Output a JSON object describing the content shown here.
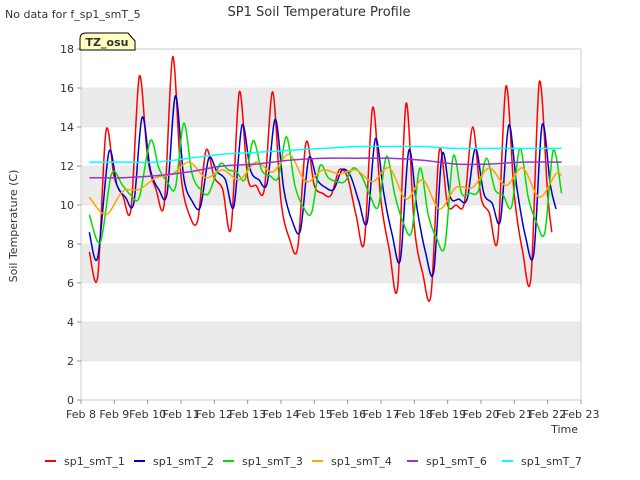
{
  "no_data_note": "No data for f_sp1_smT_5",
  "site_badge": "TZ_osu",
  "chart_data": {
    "type": "line",
    "title": "SP1 Soil Temperature Profile",
    "xlabel": "Time",
    "ylabel": "Soil Temperature (C)",
    "ylim": [
      0,
      18
    ],
    "yticks": [
      0,
      2,
      4,
      6,
      8,
      10,
      12,
      14,
      16,
      18
    ],
    "xlim": [
      "Feb 8",
      "Feb 23"
    ],
    "xticks": [
      "Feb 8",
      "Feb 9",
      "Feb 10",
      "Feb 11",
      "Feb 12",
      "Feb 13",
      "Feb 14",
      "Feb 15",
      "Feb 16",
      "Feb 17",
      "Feb 18",
      "Feb 19",
      "Feb 20",
      "Feb 21",
      "Feb 22",
      "Feb 23"
    ],
    "grid": "horizontal bands",
    "legend_position": "bottom",
    "series": [
      {
        "name": "sp1_smT_1",
        "color": "#ff0000",
        "points": [
          [
            "Feb 8 06:00",
            7.6
          ],
          [
            "Feb 8 12:00",
            6.3
          ],
          [
            "Feb 8 18:00",
            13.8
          ],
          [
            "Feb 9 00:00",
            11.4
          ],
          [
            "Feb 9 06:00",
            10.5
          ],
          [
            "Feb 9 12:00",
            9.8
          ],
          [
            "Feb 9 18:00",
            16.6
          ],
          [
            "Feb 10 00:00",
            12.4
          ],
          [
            "Feb 10 06:00",
            10.8
          ],
          [
            "Feb 10 12:00",
            10.1
          ],
          [
            "Feb 10 18:00",
            17.6
          ],
          [
            "Feb 11 00:00",
            11.5
          ],
          [
            "Feb 11 06:00",
            9.5
          ],
          [
            "Feb 11 12:00",
            9.2
          ],
          [
            "Feb 11 18:00",
            12.8
          ],
          [
            "Feb 12 00:00",
            11.4
          ],
          [
            "Feb 12 06:00",
            10.8
          ],
          [
            "Feb 12 12:00",
            8.8
          ],
          [
            "Feb 12 18:00",
            15.8
          ],
          [
            "Feb 13 00:00",
            11.4
          ],
          [
            "Feb 13 06:00",
            11.0
          ],
          [
            "Feb 13 12:00",
            10.8
          ],
          [
            "Feb 13 18:00",
            15.8
          ],
          [
            "Feb 14 00:00",
            10.2
          ],
          [
            "Feb 14 06:00",
            8.3
          ],
          [
            "Feb 14 12:00",
            7.8
          ],
          [
            "Feb 14 18:00",
            13.2
          ],
          [
            "Feb 15 00:00",
            11.0
          ],
          [
            "Feb 15 06:00",
            10.6
          ],
          [
            "Feb 15 12:00",
            10.5
          ],
          [
            "Feb 15 18:00",
            11.8
          ],
          [
            "Feb 16 00:00",
            11.4
          ],
          [
            "Feb 16 06:00",
            9.5
          ],
          [
            "Feb 16 12:00",
            8.1
          ],
          [
            "Feb 16 18:00",
            15.0
          ],
          [
            "Feb 17 00:00",
            10.2
          ],
          [
            "Feb 17 06:00",
            7.7
          ],
          [
            "Feb 17 12:00",
            5.8
          ],
          [
            "Feb 17 18:00",
            15.2
          ],
          [
            "Feb 18 00:00",
            8.9
          ],
          [
            "Feb 18 06:00",
            6.5
          ],
          [
            "Feb 18 12:00",
            5.4
          ],
          [
            "Feb 18 18:00",
            12.8
          ],
          [
            "Feb 19 00:00",
            10.0
          ],
          [
            "Feb 19 06:00",
            10.0
          ],
          [
            "Feb 19 12:00",
            10.1
          ],
          [
            "Feb 19 18:00",
            14.0
          ],
          [
            "Feb 20 00:00",
            10.4
          ],
          [
            "Feb 20 06:00",
            9.6
          ],
          [
            "Feb 20 12:00",
            8.2
          ],
          [
            "Feb 20 18:00",
            16.1
          ],
          [
            "Feb 21 00:00",
            10.5
          ],
          [
            "Feb 21 06:00",
            7.6
          ],
          [
            "Feb 21 12:00",
            6.3
          ],
          [
            "Feb 21 18:00",
            16.3
          ],
          [
            "Feb 22 00:00",
            10.5
          ],
          [
            "Feb 22 03:00",
            8.6
          ]
        ]
      },
      {
        "name": "sp1_smT_2",
        "color": "#0000cc",
        "points": [
          [
            "Feb 8 06:00",
            8.6
          ],
          [
            "Feb 8 12:00",
            7.3
          ],
          [
            "Feb 8 20:00",
            12.7
          ],
          [
            "Feb 9 02:00",
            11.0
          ],
          [
            "Feb 9 08:00",
            10.4
          ],
          [
            "Feb 9 14:00",
            10.1
          ],
          [
            "Feb 9 20:00",
            14.5
          ],
          [
            "Feb 10 02:00",
            11.8
          ],
          [
            "Feb 10 08:00",
            10.8
          ],
          [
            "Feb 10 14:00",
            10.6
          ],
          [
            "Feb 10 20:00",
            15.6
          ],
          [
            "Feb 11 02:00",
            11.4
          ],
          [
            "Feb 11 08:00",
            10.2
          ],
          [
            "Feb 11 14:00",
            9.9
          ],
          [
            "Feb 11 20:00",
            12.4
          ],
          [
            "Feb 12 02:00",
            11.7
          ],
          [
            "Feb 12 08:00",
            11.3
          ],
          [
            "Feb 12 14:00",
            9.9
          ],
          [
            "Feb 12 20:00",
            14.1
          ],
          [
            "Feb 13 02:00",
            11.8
          ],
          [
            "Feb 13 08:00",
            11.3
          ],
          [
            "Feb 13 14:00",
            11.1
          ],
          [
            "Feb 13 20:00",
            14.4
          ],
          [
            "Feb 14 02:00",
            10.8
          ],
          [
            "Feb 14 08:00",
            9.2
          ],
          [
            "Feb 14 14:00",
            8.7
          ],
          [
            "Feb 14 20:00",
            12.4
          ],
          [
            "Feb 15 02:00",
            11.3
          ],
          [
            "Feb 15 08:00",
            10.9
          ],
          [
            "Feb 15 14:00",
            10.8
          ],
          [
            "Feb 15 20:00",
            11.8
          ],
          [
            "Feb 16 02:00",
            11.5
          ],
          [
            "Feb 16 08:00",
            10.2
          ],
          [
            "Feb 16 14:00",
            9.1
          ],
          [
            "Feb 16 20:00",
            13.4
          ],
          [
            "Feb 17 02:00",
            10.6
          ],
          [
            "Feb 17 08:00",
            8.5
          ],
          [
            "Feb 17 14:00",
            7.2
          ],
          [
            "Feb 17 20:00",
            12.8
          ],
          [
            "Feb 18 02:00",
            9.8
          ],
          [
            "Feb 18 08:00",
            7.6
          ],
          [
            "Feb 18 14:00",
            6.6
          ],
          [
            "Feb 18 20:00",
            12.6
          ],
          [
            "Feb 19 02:00",
            10.4
          ],
          [
            "Feb 19 08:00",
            10.3
          ],
          [
            "Feb 19 14:00",
            10.3
          ],
          [
            "Feb 19 20:00",
            12.9
          ],
          [
            "Feb 20 02:00",
            10.6
          ],
          [
            "Feb 20 08:00",
            10.1
          ],
          [
            "Feb 20 14:00",
            9.2
          ],
          [
            "Feb 20 20:00",
            14.1
          ],
          [
            "Feb 21 02:00",
            10.8
          ],
          [
            "Feb 21 08:00",
            8.4
          ],
          [
            "Feb 21 14:00",
            7.5
          ],
          [
            "Feb 21 20:00",
            14.1
          ],
          [
            "Feb 22 02:00",
            11.0
          ],
          [
            "Feb 22 06:00",
            9.8
          ]
        ]
      },
      {
        "name": "sp1_smT_3",
        "color": "#00dd00",
        "points": [
          [
            "Feb 8 06:00",
            9.5
          ],
          [
            "Feb 8 14:00",
            8.1
          ],
          [
            "Feb 8 22:00",
            11.6
          ],
          [
            "Feb 9 06:00",
            11.0
          ],
          [
            "Feb 9 12:00",
            10.5
          ],
          [
            "Feb 9 18:00",
            10.4
          ],
          [
            "Feb 10 02:00",
            13.3
          ],
          [
            "Feb 10 08:00",
            11.9
          ],
          [
            "Feb 10 14:00",
            11.2
          ],
          [
            "Feb 10 20:00",
            10.9
          ],
          [
            "Feb 11 02:00",
            14.2
          ],
          [
            "Feb 11 08:00",
            11.6
          ],
          [
            "Feb 11 14:00",
            10.8
          ],
          [
            "Feb 11 20:00",
            10.6
          ],
          [
            "Feb 12 04:00",
            12.1
          ],
          [
            "Feb 12 10:00",
            11.8
          ],
          [
            "Feb 12 16:00",
            11.7
          ],
          [
            "Feb 12 22:00",
            11.3
          ],
          [
            "Feb 13 04:00",
            13.3
          ],
          [
            "Feb 13 10:00",
            11.8
          ],
          [
            "Feb 13 16:00",
            11.5
          ],
          [
            "Feb 13 22:00",
            11.4
          ],
          [
            "Feb 14 04:00",
            13.5
          ],
          [
            "Feb 14 10:00",
            11.0
          ],
          [
            "Feb 14 16:00",
            9.9
          ],
          [
            "Feb 14 22:00",
            9.6
          ],
          [
            "Feb 15 04:00",
            12.0
          ],
          [
            "Feb 15 10:00",
            11.4
          ],
          [
            "Feb 15 16:00",
            11.2
          ],
          [
            "Feb 15 22:00",
            11.2
          ],
          [
            "Feb 16 04:00",
            11.9
          ],
          [
            "Feb 16 10:00",
            11.5
          ],
          [
            "Feb 16 16:00",
            10.5
          ],
          [
            "Feb 16 22:00",
            9.9
          ],
          [
            "Feb 17 04:00",
            12.5
          ],
          [
            "Feb 17 10:00",
            10.5
          ],
          [
            "Feb 17 16:00",
            9.1
          ],
          [
            "Feb 17 22:00",
            8.6
          ],
          [
            "Feb 18 04:00",
            11.9
          ],
          [
            "Feb 18 10:00",
            9.5
          ],
          [
            "Feb 18 16:00",
            8.3
          ],
          [
            "Feb 18 22:00",
            7.9
          ],
          [
            "Feb 19 04:00",
            12.5
          ],
          [
            "Feb 19 10:00",
            10.6
          ],
          [
            "Feb 19 16:00",
            10.6
          ],
          [
            "Feb 19 22:00",
            10.7
          ],
          [
            "Feb 20 04:00",
            12.4
          ],
          [
            "Feb 20 10:00",
            10.8
          ],
          [
            "Feb 20 16:00",
            10.5
          ],
          [
            "Feb 20 22:00",
            9.9
          ],
          [
            "Feb 21 04:00",
            12.9
          ],
          [
            "Feb 21 10:00",
            10.4
          ],
          [
            "Feb 21 16:00",
            9.1
          ],
          [
            "Feb 21 22:00",
            8.6
          ],
          [
            "Feb 22 04:00",
            12.8
          ],
          [
            "Feb 22 10:00",
            10.6
          ]
        ]
      },
      {
        "name": "sp1_smT_4",
        "color": "#ffa500",
        "points": [
          [
            "Feb 8 06:00",
            10.4
          ],
          [
            "Feb 8 18:00",
            9.5
          ],
          [
            "Feb 9 06:00",
            10.7
          ],
          [
            "Feb 9 18:00",
            10.8
          ],
          [
            "Feb 10 06:00",
            11.4
          ],
          [
            "Feb 10 18:00",
            11.6
          ],
          [
            "Feb 11 06:00",
            12.2
          ],
          [
            "Feb 11 18:00",
            11.4
          ],
          [
            "Feb 12 06:00",
            11.8
          ],
          [
            "Feb 12 18:00",
            11.3
          ],
          [
            "Feb 13 06:00",
            12.2
          ],
          [
            "Feb 13 18:00",
            11.7
          ],
          [
            "Feb 14 06:00",
            12.6
          ],
          [
            "Feb 14 18:00",
            11.2
          ],
          [
            "Feb 15 06:00",
            11.8
          ],
          [
            "Feb 15 18:00",
            11.6
          ],
          [
            "Feb 16 06:00",
            11.8
          ],
          [
            "Feb 16 18:00",
            11.2
          ],
          [
            "Feb 17 06:00",
            11.9
          ],
          [
            "Feb 17 18:00",
            10.3
          ],
          [
            "Feb 18 06:00",
            11.3
          ],
          [
            "Feb 18 18:00",
            9.8
          ],
          [
            "Feb 19 06:00",
            10.9
          ],
          [
            "Feb 19 18:00",
            10.9
          ],
          [
            "Feb 20 06:00",
            11.9
          ],
          [
            "Feb 20 18:00",
            11.0
          ],
          [
            "Feb 21 06:00",
            11.9
          ],
          [
            "Feb 21 18:00",
            10.4
          ],
          [
            "Feb 22 06:00",
            11.6
          ],
          [
            "Feb 22 10:00",
            11.5
          ]
        ]
      },
      {
        "name": "sp1_smT_6",
        "color": "#9933cc",
        "points": [
          [
            "Feb 8 06:00",
            11.4
          ],
          [
            "Feb 9 06:00",
            11.4
          ],
          [
            "Feb 10 06:00",
            11.5
          ],
          [
            "Feb 11 06:00",
            11.7
          ],
          [
            "Feb 12 06:00",
            12.0
          ],
          [
            "Feb 13 06:00",
            12.1
          ],
          [
            "Feb 14 06:00",
            12.3
          ],
          [
            "Feb 15 06:00",
            12.4
          ],
          [
            "Feb 16 06:00",
            12.4
          ],
          [
            "Feb 17 06:00",
            12.4
          ],
          [
            "Feb 18 06:00",
            12.3
          ],
          [
            "Feb 19 06:00",
            12.1
          ],
          [
            "Feb 20 06:00",
            12.1
          ],
          [
            "Feb 21 06:00",
            12.2
          ],
          [
            "Feb 22 06:00",
            12.2
          ],
          [
            "Feb 22 10:00",
            12.2
          ]
        ]
      },
      {
        "name": "sp1_smT_7",
        "color": "#00ffff",
        "points": [
          [
            "Feb 8 06:00",
            12.2
          ],
          [
            "Feb 9 06:00",
            12.2
          ],
          [
            "Feb 10 06:00",
            12.2
          ],
          [
            "Feb 11 06:00",
            12.4
          ],
          [
            "Feb 12 06:00",
            12.6
          ],
          [
            "Feb 13 06:00",
            12.7
          ],
          [
            "Feb 14 06:00",
            12.8
          ],
          [
            "Feb 15 06:00",
            12.9
          ],
          [
            "Feb 16 06:00",
            13.0
          ],
          [
            "Feb 17 06:00",
            13.0
          ],
          [
            "Feb 18 06:00",
            13.0
          ],
          [
            "Feb 19 06:00",
            12.9
          ],
          [
            "Feb 20 06:00",
            12.9
          ],
          [
            "Feb 21 06:00",
            12.9
          ],
          [
            "Feb 22 06:00",
            12.9
          ],
          [
            "Feb 22 10:00",
            12.9
          ]
        ]
      }
    ]
  }
}
